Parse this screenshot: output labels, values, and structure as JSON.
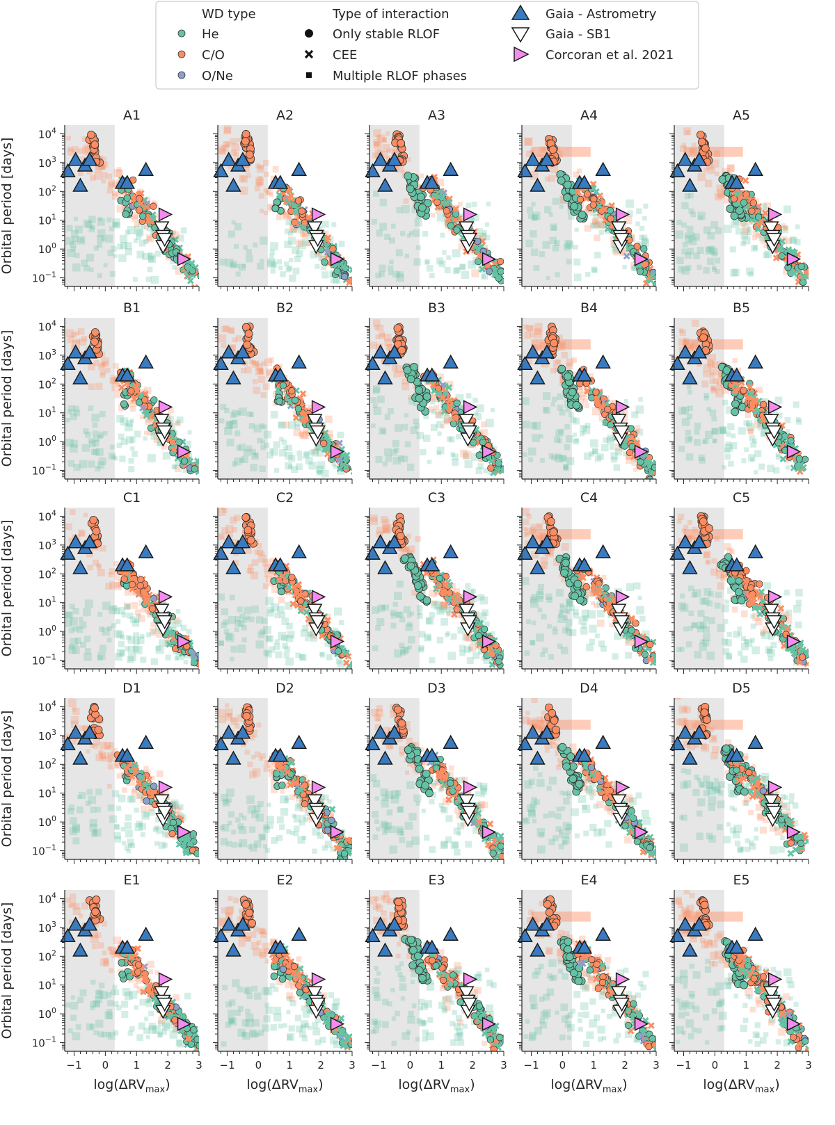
{
  "chart_data": {
    "type": "scatter",
    "layout": "5x5 grid of panels",
    "panels": [
      {
        "title": "A1"
      },
      {
        "title": "A2"
      },
      {
        "title": "A3"
      },
      {
        "title": "A4"
      },
      {
        "title": "A5"
      },
      {
        "title": "B1"
      },
      {
        "title": "B2"
      },
      {
        "title": "B3"
      },
      {
        "title": "B4"
      },
      {
        "title": "B5"
      },
      {
        "title": "C1"
      },
      {
        "title": "C2"
      },
      {
        "title": "C3"
      },
      {
        "title": "C4"
      },
      {
        "title": "C5"
      },
      {
        "title": "D1"
      },
      {
        "title": "D2"
      },
      {
        "title": "D3"
      },
      {
        "title": "D4"
      },
      {
        "title": "D5"
      },
      {
        "title": "E1"
      },
      {
        "title": "E2"
      },
      {
        "title": "E3"
      },
      {
        "title": "E4"
      },
      {
        "title": "E5"
      }
    ],
    "xlabel_main": "log(ΔRV",
    "xlabel_sub": "max",
    "xlabel_close": ")",
    "ylabel": "Orbital period [days]",
    "xlim": [
      -1.3,
      3.0
    ],
    "ylim_log10": [
      -1.3,
      4.3
    ],
    "x_ticks": [
      -1,
      0,
      1,
      2,
      3
    ],
    "x_tick_labels": [
      "−1",
      "0",
      "1",
      "2",
      "3"
    ],
    "y_ticks_log10": [
      -1,
      0,
      1,
      2,
      3,
      4
    ],
    "y_tick_labels": [
      {
        "base": "10",
        "exp": "−1"
      },
      {
        "base": "10",
        "exp": "0"
      },
      {
        "base": "10",
        "exp": "1"
      },
      {
        "base": "10",
        "exp": "2"
      },
      {
        "base": "10",
        "exp": "3"
      },
      {
        "base": "10",
        "exp": "4"
      }
    ],
    "shaded_region_x": [
      -1.3,
      0.3
    ],
    "legend": {
      "wd_type": {
        "title": "WD type",
        "items": [
          {
            "label": "He",
            "color": "#66c2a5"
          },
          {
            "label": "C/O",
            "color": "#fc8d62"
          },
          {
            "label": "O/Ne",
            "color": "#8da0cb"
          }
        ]
      },
      "interaction": {
        "title": "Type of interaction",
        "items": [
          {
            "label": "Only stable RLOF",
            "marker": "circle"
          },
          {
            "label": "CEE",
            "marker": "x"
          },
          {
            "label": "Multiple RLOF phases",
            "marker": "square"
          }
        ]
      },
      "observations": {
        "items": [
          {
            "label": "Gaia - Astrometry",
            "marker": "triangle-up",
            "color": "#3a7bbf"
          },
          {
            "label": "Gaia - SB1",
            "marker": "triangle-down",
            "color": "#ffffff"
          },
          {
            "label": "Corcoran et al. 2021",
            "marker": "triangle-right",
            "color": "#f48cf0"
          }
        ]
      }
    },
    "observed_points": {
      "gaia_astrometry": [
        {
          "x": -1.2,
          "logP": 2.7
        },
        {
          "x": -0.95,
          "logP": 3.1
        },
        {
          "x": -0.8,
          "logP": 2.2
        },
        {
          "x": -0.65,
          "logP": 2.9
        },
        {
          "x": -0.5,
          "logP": 3.1
        },
        {
          "x": 0.55,
          "logP": 2.3
        },
        {
          "x": 0.7,
          "logP": 2.3
        },
        {
          "x": 1.3,
          "logP": 2.75
        }
      ],
      "gaia_sb1": [
        {
          "x": 1.8,
          "logP": 0.75
        },
        {
          "x": 1.85,
          "logP": 0.45
        },
        {
          "x": 1.85,
          "logP": 0.1
        },
        {
          "x": 1.9,
          "logP": 0.35
        }
      ],
      "corcoran_2021": [
        {
          "x": 1.9,
          "logP": 1.2
        },
        {
          "x": 2.5,
          "logP": -0.35
        }
      ]
    },
    "simulated_populations": "dense scatter of He (green), C/O (orange) and O/Ne (blue) white-dwarf binaries following an anti-correlation between log(ΔRV_max) and orbital period; C/O systems dominate at long periods (10^2–10^4 d) near log(ΔRV_max) ≈ −0.3, He systems fill short periods"
  }
}
